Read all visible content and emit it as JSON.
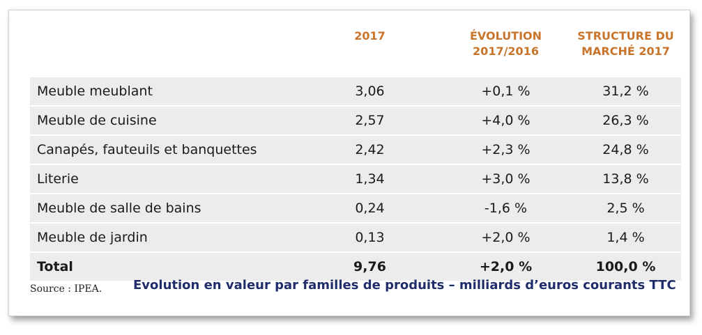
{
  "table": {
    "headers": {
      "year": [
        "2017"
      ],
      "evolution": [
        "ÉVOLUTION",
        "2017/2016"
      ],
      "structure": [
        "STRUCTURE DU",
        "MARCHÉ 2017"
      ]
    },
    "rows": [
      {
        "label": "Meuble meublant",
        "value": "3,06",
        "evolution": "+0,1 %",
        "structure": "31,2 %"
      },
      {
        "label": "Meuble de cuisine",
        "value": "2,57",
        "evolution": "+4,0 %",
        "structure": "26,3 %"
      },
      {
        "label": "Canapés, fauteuils et banquettes",
        "value": "2,42",
        "evolution": "+2,3 %",
        "structure": "24,8 %"
      },
      {
        "label": "Literie",
        "value": "1,34",
        "evolution": "+3,0 %",
        "structure": "13,8 %"
      },
      {
        "label": "Meuble de salle de bains",
        "value": "0,24",
        "evolution": "-1,6 %",
        "structure": "2,5 %"
      },
      {
        "label": "Meuble de jardin",
        "value": "0,13",
        "evolution": "+2,0 %",
        "structure": "1,4 %"
      },
      {
        "label": "Total",
        "value": "9,76",
        "evolution": "+2,0 %",
        "structure": "100,0 %"
      }
    ]
  },
  "footer": {
    "source": "Source : IPEA.",
    "caption": "Evolution en valeur par familles de produits – milliards d’euros courants TTC"
  },
  "colors": {
    "header": "#c8742a",
    "caption": "#1f2d6b",
    "row_bg": "#ececec"
  }
}
